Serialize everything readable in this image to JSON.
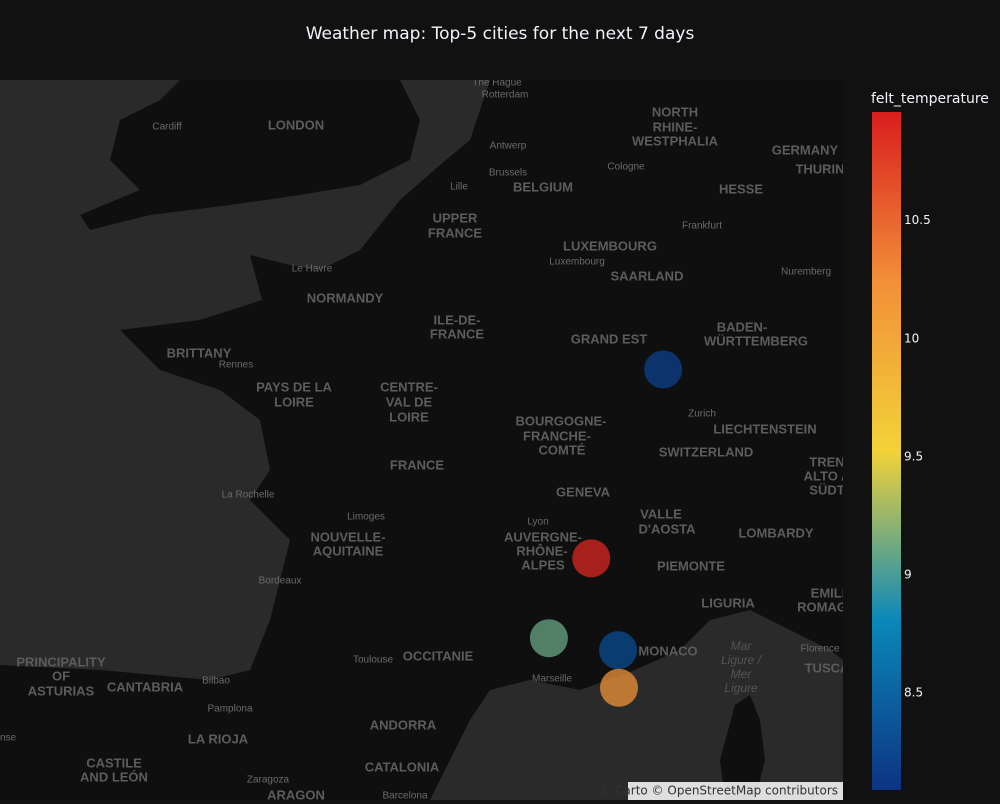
{
  "chart_data": {
    "type": "scatter_map",
    "title": "Weather map: Top-5 cities for the next 7 days",
    "colorbar_title": "felt_temperature",
    "lat": [
      48.05,
      45.2,
      43.95,
      43.76,
      43.16
    ],
    "lon": [
      7.27,
      5.69,
      4.76,
      6.28,
      6.3
    ],
    "values": [
      8.2,
      10.9,
      9.1,
      8.3,
      10.2
    ],
    "colorscale": [
      "#0c3383",
      "#0a88ba",
      "#f2d338",
      "#f28f38",
      "#d91e1e"
    ],
    "clim": [
      8.09,
      10.96
    ],
    "cticks": [
      8.5,
      9,
      9.5,
      10,
      10.5
    ],
    "attribution": "© Carto © OpenStreetMap contributors",
    "map_labels": [
      "Cardiff",
      "LONDON",
      "The Hague",
      "Rotterdam",
      "NORTH",
      "RHINE-",
      "WESTPHALIA",
      "GERMANY",
      "THURIN",
      "Antwerp",
      "Brussels",
      "Cologne",
      "Lille",
      "BELGIUM",
      "HESSE",
      "UPPER",
      "FRANCE",
      "Frankfurt",
      "LUXEMBOURG",
      "Luxembourg",
      "SAARLAND",
      "Le Havre",
      "Nuremberg",
      "NORMANDY",
      "ILE-DE-",
      "FRANCE",
      "BADEN-",
      "WÜRTTEMBERG",
      "GRAND EST",
      "BRITTANY",
      "Rennes",
      "PAYS DE LA",
      "LOIRE",
      "CENTRE-",
      "VAL DE",
      "LOIRE",
      "Zurich",
      "BOURGOGNE-",
      "FRANCHE-",
      "COMTÉ",
      "LIECHTENSTEIN",
      "FRANCE",
      "SWITZERLAND",
      "TREN",
      "ALTO A",
      "SÜDT",
      "La Rochelle",
      "GENEVA",
      "VALLE",
      "D'AOSTA",
      "Limoges",
      "Lyon",
      "NOUVELLE-",
      "AQUITAINE",
      "AUVERGNE-",
      "RHÔNE-",
      "ALPES",
      "LOMBARDY",
      "PIEMONTE",
      "Bordeaux",
      "LIGURIA",
      "EMILI",
      "ROMAG",
      "PRINCIPALITY",
      "OF",
      "ASTURIAS",
      "Toulouse",
      "OCCITANIE",
      "MONACO",
      "Florence",
      "TUSCA",
      "Mar",
      "Ligure /",
      "Mer",
      "Ligure",
      "CANTABRIA",
      "Bilbao",
      "Marseille",
      "Pamplona",
      "ANDORRA",
      "LA RIOJA",
      "CASTILE",
      "AND LEÓN",
      "CATALONIA",
      "Zaragoza",
      "Barcelona",
      "ARAGON",
      "nse"
    ]
  }
}
